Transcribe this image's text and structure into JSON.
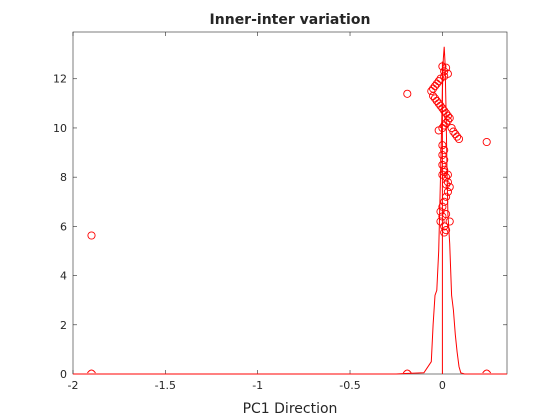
{
  "chart_data": {
    "type": "scatter",
    "title": "Inner-inter variation",
    "xlabel": "PC1 Direction",
    "ylabel": "",
    "xlim": [
      -2,
      0.35
    ],
    "ylim": [
      0,
      13.9
    ],
    "xticks": [
      -2,
      -1.5,
      -1,
      -0.5,
      0
    ],
    "xtick_labels": [
      "-2",
      "-1.5",
      "-1",
      "-0.5",
      "0"
    ],
    "yticks": [
      0,
      2,
      4,
      6,
      8,
      10,
      12
    ],
    "ytick_labels": [
      "0",
      "2",
      "4",
      "6",
      "8",
      "10",
      "12"
    ],
    "grid": false,
    "color": "#ff0000",
    "points": [
      [
        -1.9,
        5.63
      ],
      [
        -0.19,
        11.39
      ],
      [
        0.24,
        9.43
      ],
      [
        0.0,
        12.5
      ],
      [
        0.01,
        12.3
      ],
      [
        0.02,
        12.45
      ],
      [
        0.03,
        12.2
      ],
      [
        0.01,
        12.1
      ],
      [
        -0.01,
        12.0
      ],
      [
        -0.02,
        11.9
      ],
      [
        -0.03,
        11.8
      ],
      [
        -0.04,
        11.7
      ],
      [
        -0.05,
        11.6
      ],
      [
        -0.06,
        11.5
      ],
      [
        -0.05,
        11.3
      ],
      [
        -0.04,
        11.2
      ],
      [
        -0.03,
        11.1
      ],
      [
        -0.02,
        11.0
      ],
      [
        -0.01,
        10.9
      ],
      [
        0.0,
        10.8
      ],
      [
        0.01,
        10.7
      ],
      [
        0.02,
        10.6
      ],
      [
        0.03,
        10.5
      ],
      [
        0.04,
        10.4
      ],
      [
        0.03,
        10.3
      ],
      [
        0.02,
        10.2
      ],
      [
        0.01,
        10.1
      ],
      [
        0.0,
        10.0
      ],
      [
        -0.02,
        9.9
      ],
      [
        0.05,
        10.0
      ],
      [
        0.06,
        9.85
      ],
      [
        0.07,
        9.75
      ],
      [
        0.08,
        9.65
      ],
      [
        0.09,
        9.55
      ],
      [
        0.0,
        9.3
      ],
      [
        0.01,
        9.1
      ],
      [
        0.0,
        8.9
      ],
      [
        0.01,
        8.7
      ],
      [
        0.0,
        8.5
      ],
      [
        0.01,
        8.3
      ],
      [
        0.0,
        8.1
      ],
      [
        0.02,
        8.0
      ],
      [
        0.03,
        7.8
      ],
      [
        0.04,
        7.6
      ],
      [
        0.03,
        7.4
      ],
      [
        0.02,
        7.2
      ],
      [
        0.01,
        7.0
      ],
      [
        0.0,
        6.8
      ],
      [
        -0.01,
        6.6
      ],
      [
        0.0,
        6.4
      ],
      [
        -0.01,
        6.2
      ],
      [
        0.01,
        6.0
      ],
      [
        0.02,
        5.85
      ],
      [
        0.01,
        5.75
      ],
      [
        0.04,
        6.2
      ],
      [
        0.02,
        6.5
      ],
      [
        0.02,
        7.7
      ],
      [
        0.03,
        8.1
      ],
      [
        0.01,
        8.2
      ]
    ],
    "rug_markers": [
      -1.9,
      -0.19,
      0.24
    ],
    "density_curve": [
      [
        -2.0,
        0.0
      ],
      [
        -0.25,
        0.0
      ],
      [
        -0.2,
        0.02
      ],
      [
        -0.1,
        0.05
      ],
      [
        -0.06,
        0.5
      ],
      [
        -0.05,
        2.0
      ],
      [
        -0.04,
        3.2
      ],
      [
        -0.03,
        3.4
      ],
      [
        -0.02,
        5.0
      ],
      [
        -0.01,
        8.0
      ],
      [
        0.0,
        11.5
      ],
      [
        0.005,
        12.8
      ],
      [
        0.01,
        13.3
      ],
      [
        0.015,
        12.6
      ],
      [
        0.02,
        10.6
      ],
      [
        0.025,
        8.3
      ],
      [
        0.03,
        6.5
      ],
      [
        0.04,
        5.3
      ],
      [
        0.05,
        3.2
      ],
      [
        0.06,
        2.6
      ],
      [
        0.07,
        1.6
      ],
      [
        0.08,
        0.9
      ],
      [
        0.09,
        0.3
      ],
      [
        0.1,
        0.05
      ],
      [
        0.12,
        0.0
      ],
      [
        0.35,
        0.0
      ]
    ],
    "spike_line": [
      [
        0.0,
        0.0
      ],
      [
        0.0,
        12.7
      ]
    ]
  }
}
